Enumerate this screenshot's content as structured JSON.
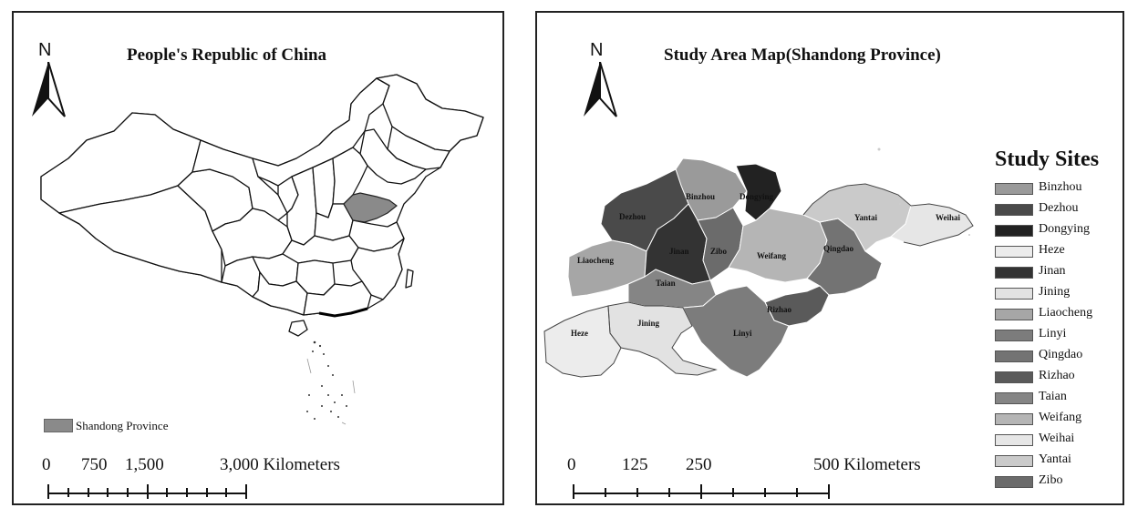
{
  "left_panel": {
    "title": "People's Republic of China",
    "north_label": "N",
    "legend": {
      "label": "Shandong Province",
      "color": "#8a8a8a"
    },
    "scale": {
      "labels": [
        "0",
        "750",
        "1,500",
        "3,000 Kilometers"
      ]
    }
  },
  "right_panel": {
    "title": "Study Area Map(Shandong Province)",
    "north_label": "N",
    "legend_title": "Study Sites",
    "legend_items": [
      {
        "label": "Binzhou",
        "color": "#9a9a9a"
      },
      {
        "label": "Dezhou",
        "color": "#4a4a4a"
      },
      {
        "label": "Dongying",
        "color": "#222222"
      },
      {
        "label": "Heze",
        "color": "#ececec"
      },
      {
        "label": "Jinan",
        "color": "#333333"
      },
      {
        "label": "Jining",
        "color": "#e2e2e2"
      },
      {
        "label": "Liaocheng",
        "color": "#a6a6a6"
      },
      {
        "label": "Linyi",
        "color": "#7c7c7c"
      },
      {
        "label": "Qingdao",
        "color": "#737373"
      },
      {
        "label": "Rizhao",
        "color": "#5a5a5a"
      },
      {
        "label": "Taian",
        "color": "#858585"
      },
      {
        "label": "Weifang",
        "color": "#b5b5b5"
      },
      {
        "label": "Weihai",
        "color": "#e6e6e6"
      },
      {
        "label": "Yantai",
        "color": "#cacaca"
      },
      {
        "label": "Zibo",
        "color": "#6b6b6b"
      }
    ],
    "map_labels": {
      "binzhou": "Binzhou",
      "dezhou": "Dezhou",
      "dongying": "Dongying",
      "heze": "Heze",
      "jinan": "Jinan",
      "jining": "Jining",
      "liaocheng": "Liaocheng",
      "linyi": "Linyi",
      "qingdao": "Qingdao",
      "rizhao": "Rizhao",
      "taian": "Taian",
      "weifang": "Weifang",
      "weihai": "Weihai",
      "yantai": "Yantai",
      "zibo": "Zibo"
    },
    "scale": {
      "labels": [
        "0",
        "125",
        "250",
        "500 Kilometers"
      ]
    }
  }
}
